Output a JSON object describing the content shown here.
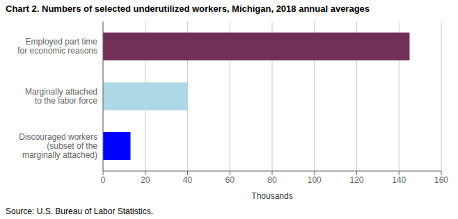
{
  "chart_data": {
    "type": "bar",
    "title": "Chart 2. Numbers of selected underutilized workers, Michigan, 2018 annual averages",
    "orientation": "horizontal",
    "categories": [
      "Discouraged workers\n(subset of the\nmarginally attached)",
      "Marginally attached\nto the labor force",
      "Employed part time\nfor economic reasons"
    ],
    "values": [
      13,
      40,
      145
    ],
    "colors": [
      "#0000ff",
      "#add8e6",
      "#722f57"
    ],
    "xlabel": "Thousands",
    "xlim": [
      0,
      160
    ],
    "xticks": [
      0,
      20,
      40,
      60,
      80,
      100,
      120,
      140,
      160
    ],
    "grid": true,
    "annotations": [
      "Source: U.S. Bureau of Labor Statistics."
    ]
  }
}
